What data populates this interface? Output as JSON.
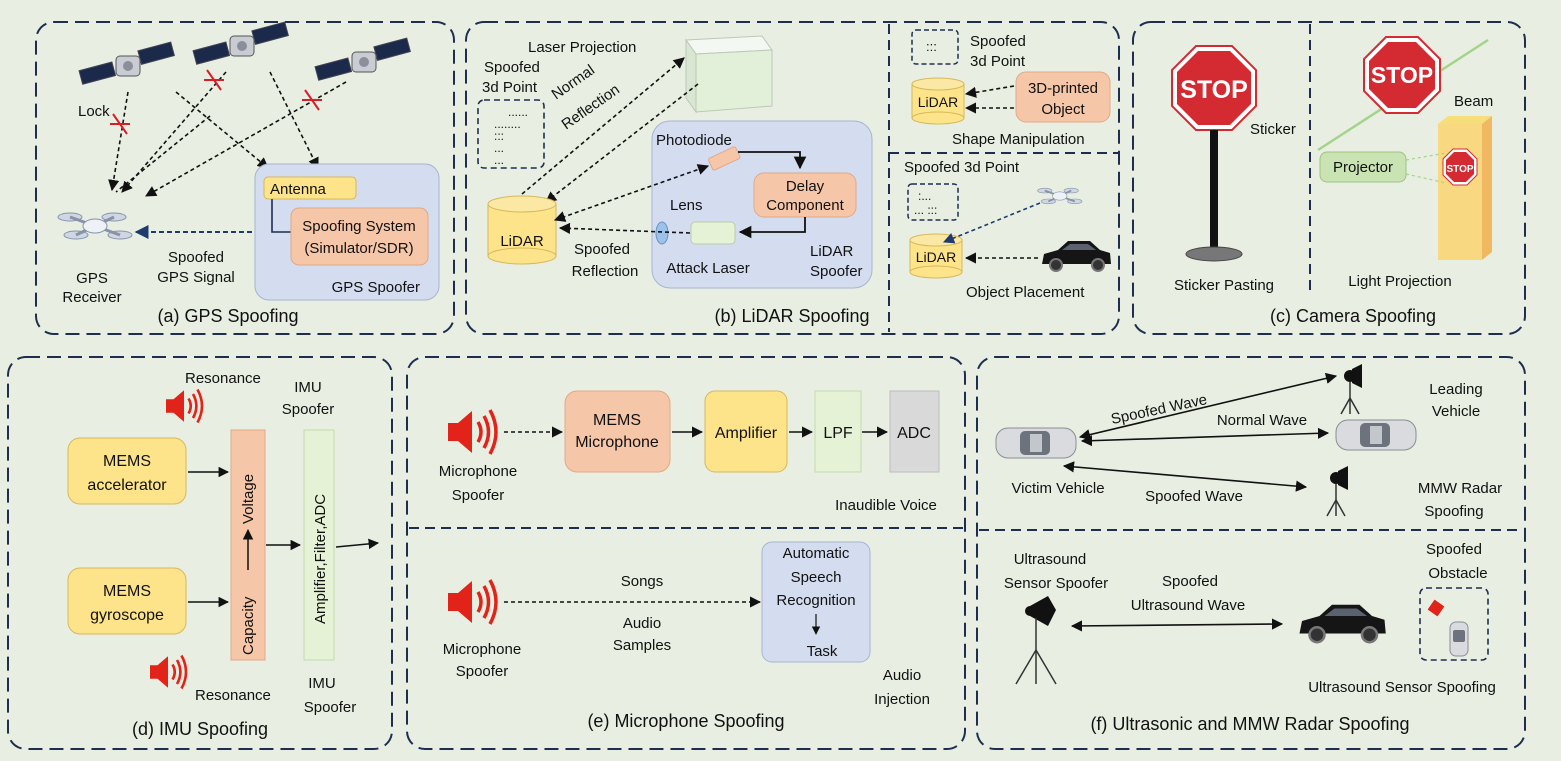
{
  "gps": {
    "caption": "(a) GPS Spoofing",
    "lock": "Lock",
    "antenna": "Antenna",
    "system_line1": "Spoofing System",
    "system_line2": "(Simulator/SDR)",
    "spoofer": "GPS Spoofer",
    "signal_line1": "Spoofed",
    "signal_line2": "GPS Signal",
    "receiver_line1": "GPS",
    "receiver_line2": "Receiver"
  },
  "lidar": {
    "caption": "(b) LiDAR Spoofing",
    "laser_projection": "Laser Projection",
    "spoofed_point_line1": "Spoofed",
    "spoofed_point_line2": "3d Point",
    "normal_line1": "Normal",
    "normal_line2": "Reflection",
    "photodiode": "Photodiode",
    "delay_line1": "Delay",
    "delay_line2": "Component",
    "lens": "Lens",
    "lidar": "LiDAR",
    "reflection_line1": "Spoofed",
    "reflection_line2": "Reflection",
    "attack_laser": "Attack Laser",
    "spoofer_line1": "LiDAR",
    "spoofer_line2": "Spoofer",
    "shape_point_line1": "Spoofed",
    "shape_point_line2": "3d Point",
    "printed_line1": "3D-printed",
    "printed_line2": "Object",
    "shape_manipulation": "Shape Manipulation",
    "placement_point": "Spoofed 3d Point",
    "object_placement": "Object Placement"
  },
  "camera": {
    "caption": "(c) Camera Spoofing",
    "stop": "STOP",
    "sticker": "Sticker",
    "sticker_pasting": "Sticker Pasting",
    "beam": "Beam",
    "projector": "Projector",
    "light_projection": "Light Projection"
  },
  "imu": {
    "caption": "(d) IMU Spoofing",
    "resonance": "Resonance",
    "spoofer_line1": "IMU",
    "spoofer_line2": "Spoofer",
    "acc_line1": "MEMS",
    "acc_line2": "accelerator",
    "gyro_line1": "MEMS",
    "gyro_line2": "gyroscope",
    "capacity": "Capacity",
    "voltage": "Voltage",
    "chain": "Amplifier,Filter,ADC"
  },
  "mic": {
    "caption": "(e) Microphone Spoofing",
    "spoofer_line1": "Microphone",
    "spoofer_line2": "Spoofer",
    "mems_line1": "MEMS",
    "mems_line2": "Microphone",
    "amplifier": "Amplifier",
    "lpf": "LPF",
    "adc": "ADC",
    "inaudible": "Inaudible Voice",
    "songs": "Songs",
    "audio_line1": "Audio",
    "audio_line2": "Samples",
    "asr_line1": "Automatic",
    "asr_line2": "Speech",
    "asr_line3": "Recognition",
    "task": "Task",
    "injection_line1": "Audio",
    "injection_line2": "Injection"
  },
  "radar": {
    "caption": "(f) Ultrasonic and MMW Radar Spoofing",
    "spoofed_wave": "Spoofed Wave",
    "normal_wave": "Normal Wave",
    "leading_line1": "Leading",
    "leading_line2": "Vehicle",
    "victim": "Victim Vehicle",
    "mmw_line1": "MMW Radar",
    "mmw_line2": "Spoofing",
    "us_spoofer_line1": "Ultrasound",
    "us_spoofer_line2": "Sensor Spoofer",
    "us_wave_line1": "Spoofed",
    "us_wave_line2": "Ultrasound Wave",
    "obstacle_line1": "Spoofed",
    "obstacle_line2": "Obstacle",
    "us_spoofing": "Ultrasound Sensor Spoofing"
  },
  "colors": {
    "background": "#e8efe2",
    "panel_border": "#1f2d4f",
    "orange_box": "#f6c6a8",
    "yellow_box": "#fde48a",
    "blue_panel": "#d4dcf0",
    "green_box": "#e6f2d6",
    "gray_box": "#d9d9d9",
    "stop_red": "#d42a32",
    "cross_red": "#d61f26",
    "speaker_red": "#e2231a"
  }
}
